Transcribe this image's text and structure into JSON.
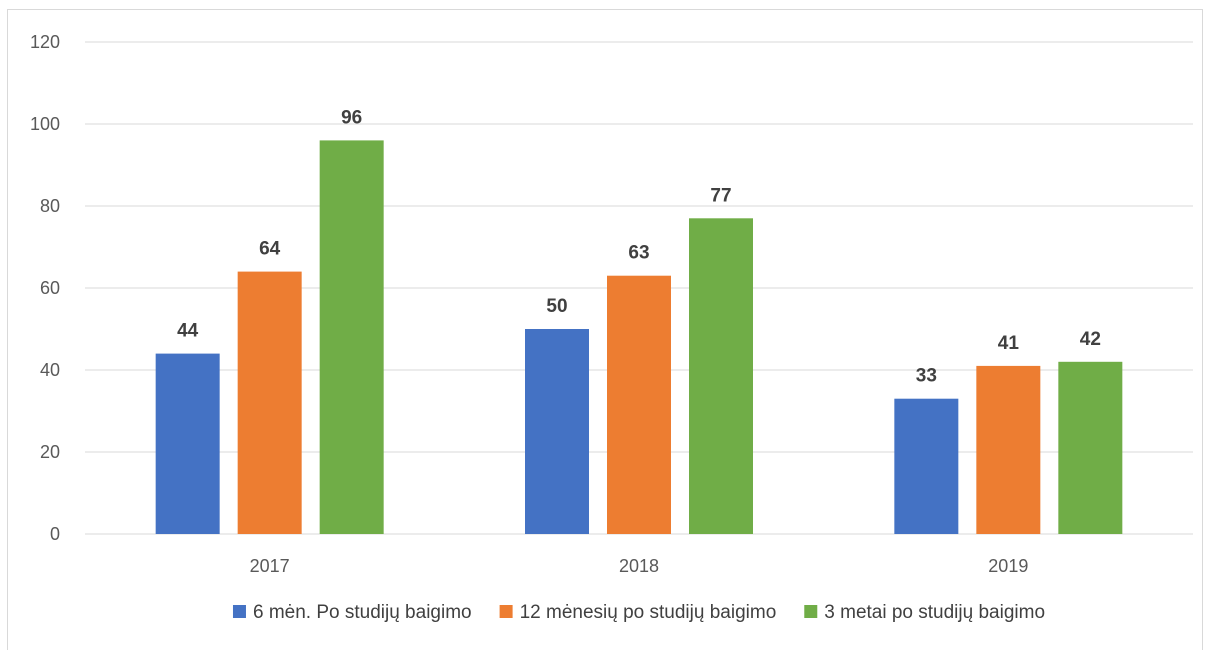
{
  "chart_data": {
    "type": "bar",
    "categories": [
      "2017",
      "2018",
      "2019"
    ],
    "series": [
      {
        "name": "6 mėn. Po studijų baigimo",
        "values": [
          44,
          50,
          33
        ],
        "color": "#4472c4"
      },
      {
        "name": "12 mėnesių po studijų baigimo",
        "values": [
          64,
          63,
          41
        ],
        "color": "#ed7d31"
      },
      {
        "name": "3 metai po studijų baigimo",
        "values": [
          96,
          77,
          42
        ],
        "color": "#70ad47"
      }
    ],
    "yticks": [
      "0",
      "20",
      "40",
      "60",
      "80",
      "100",
      "120"
    ],
    "ylim": [
      0,
      120
    ],
    "grid": true,
    "data_labels": true,
    "legend_position": "bottom",
    "title": "",
    "xlabel": "",
    "ylabel": ""
  }
}
